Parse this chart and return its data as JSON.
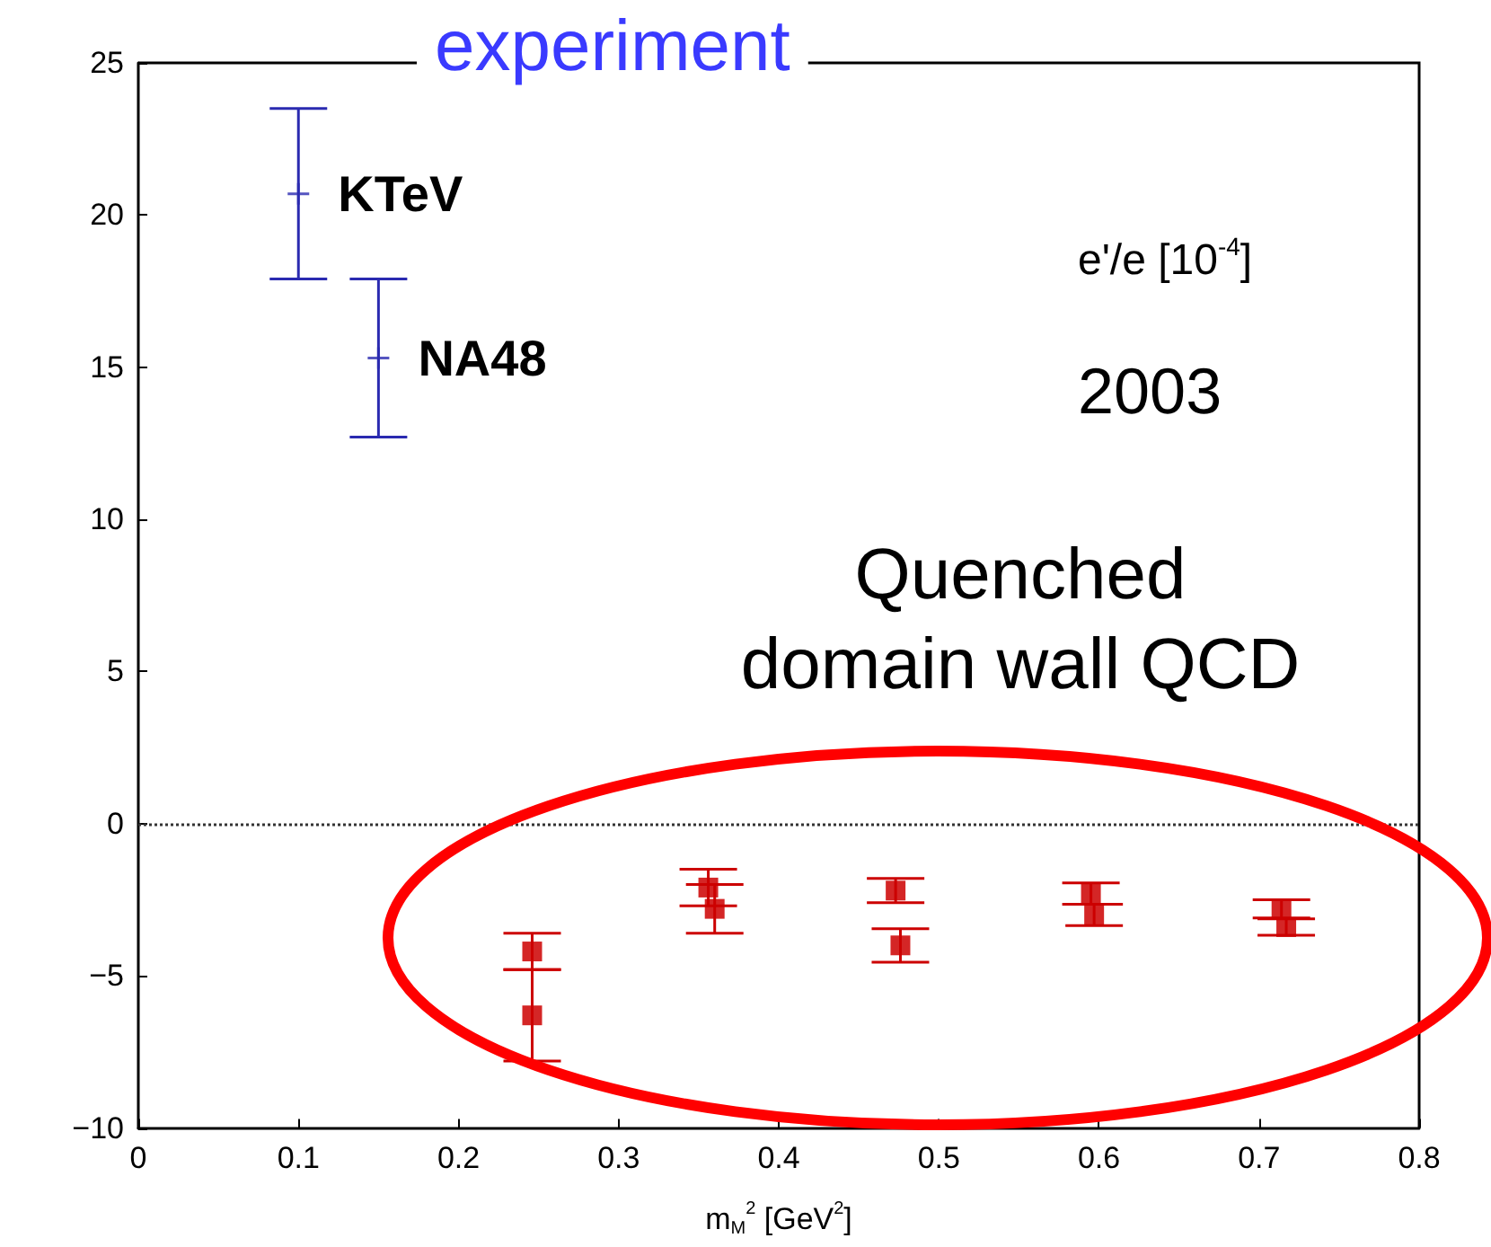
{
  "chart_data": {
    "type": "scatter",
    "title": "experiment",
    "xlabel": "m$_{M}$$^{2}$ [GeV$^{2}$]",
    "xlim": [
      0,
      0.8
    ],
    "xticks": [
      0,
      0.1,
      0.2,
      0.3,
      0.4,
      0.5,
      0.6,
      0.7,
      0.8
    ],
    "ylim": [
      -10,
      25
    ],
    "yticks": [
      -10,
      -5,
      0,
      5,
      10,
      15,
      20,
      25
    ],
    "series": [
      {
        "color": "#2a2ab0",
        "marker": "cross",
        "x": [
          0.1,
          0.15
        ],
        "values": [
          20.7,
          15.3
        ],
        "errors": [
          2.8,
          2.6
        ]
      },
      {
        "color": "#cc0000",
        "marker": "square",
        "x": [
          0.246,
          0.356,
          0.473,
          0.597,
          0.717
        ],
        "values": [
          -4.2,
          -2.1,
          -2.2,
          -3.0,
          -3.4
        ],
        "errors": [
          0.6,
          0.6,
          0.4,
          0.35,
          0.27
        ]
      },
      {
        "color": "#cc0000",
        "marker": "square",
        "x": [
          0.246,
          0.36,
          0.476,
          0.595,
          0.714
        ],
        "values": [
          -6.3,
          -2.8,
          -4.0,
          -2.3,
          -2.8
        ],
        "errors": [
          1.5,
          0.8,
          0.55,
          0.35,
          0.3
        ]
      }
    ],
    "ref_lines": [
      {
        "axis": "y",
        "value": 0,
        "line_style": "dotted",
        "color": "#333333"
      }
    ],
    "annotations": [
      {
        "text": "KTeV",
        "x": 0.1,
        "y": 20.7
      },
      {
        "text": "NA48",
        "x": 0.15,
        "y": 15.3
      },
      "e'/e [10$^{-4}$]",
      "2003",
      "Quenched\ndomain wall QCD"
    ]
  }
}
